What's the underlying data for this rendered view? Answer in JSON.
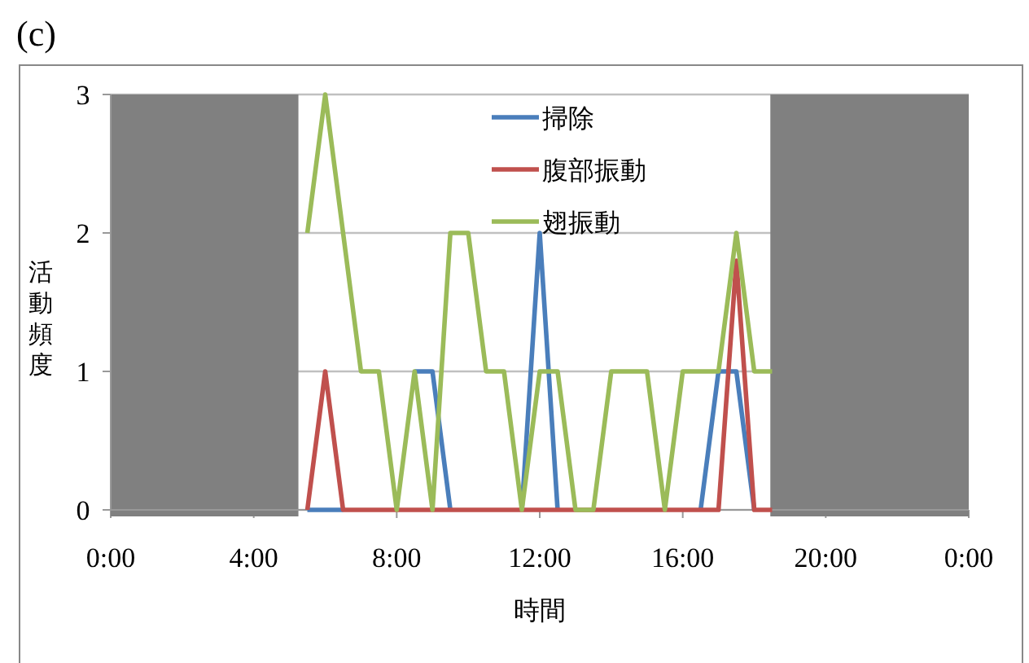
{
  "chart_data": {
    "type": "line",
    "title": "(c)",
    "xlabel": "時間",
    "ylabel": "活動頻度",
    "x": [
      5.5,
      6,
      6.5,
      7,
      7.5,
      8,
      8.5,
      9,
      9.5,
      10,
      10.5,
      11,
      11.5,
      12,
      12.5,
      13,
      13.5,
      14,
      14.5,
      15,
      15.5,
      16,
      16.5,
      17,
      17.5,
      18,
      18.5
    ],
    "series": [
      {
        "name": "掃除",
        "color": "#4a7ebb",
        "values": [
          0,
          0,
          0,
          null,
          null,
          null,
          1,
          1,
          0,
          null,
          null,
          null,
          0,
          2,
          0,
          null,
          null,
          null,
          null,
          null,
          null,
          null,
          0,
          1,
          1,
          0,
          null
        ]
      },
      {
        "name": "腹部振動",
        "color": "#c0504d",
        "values": [
          0,
          1,
          0,
          0,
          0,
          0,
          0,
          0,
          0,
          0,
          0,
          0,
          0,
          0,
          0,
          0,
          0,
          0,
          0,
          0,
          0,
          0,
          0,
          0,
          1.8,
          0,
          0
        ]
      },
      {
        "name": "翅振動",
        "color": "#9bbb59",
        "values": [
          2,
          3,
          2,
          1,
          1,
          0,
          1,
          0,
          2,
          2,
          1,
          1,
          0,
          1,
          1,
          0,
          0,
          1,
          1,
          1,
          0,
          1,
          1,
          1,
          2,
          1,
          1
        ]
      }
    ],
    "xlim": [
      0,
      24
    ],
    "ylim": [
      0,
      3
    ],
    "xticks": [
      {
        "value": 0,
        "label": "0:00"
      },
      {
        "value": 4,
        "label": "4:00"
      },
      {
        "value": 8,
        "label": "8:00"
      },
      {
        "value": 12,
        "label": "12:00"
      },
      {
        "value": 16,
        "label": "16:00"
      },
      {
        "value": 20,
        "label": "20:00"
      },
      {
        "value": 24,
        "label": "0:00"
      }
    ],
    "yticks": [
      0,
      1,
      2,
      3
    ],
    "bands": [
      {
        "axis": "x",
        "from": 0,
        "to": 5.25,
        "color": "#808080"
      },
      {
        "axis": "x",
        "from": 18.45,
        "to": 24,
        "color": "#808080"
      }
    ],
    "grid": "y",
    "legend": "top",
    "marker": "none",
    "line_style": "solid"
  }
}
